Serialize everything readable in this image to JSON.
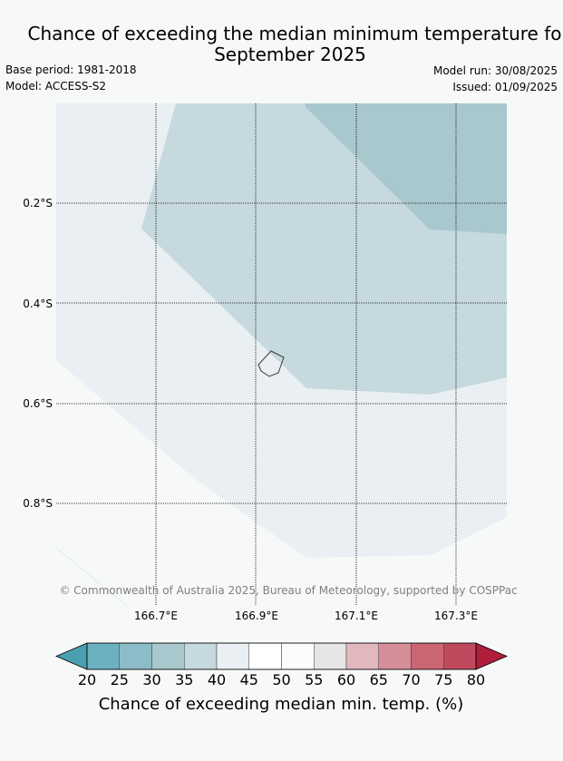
{
  "header": {
    "title_line1": "Chance of exceeding the median minimum temperature fo",
    "title_line2": "September 2025",
    "base_period": "Base period: 1981-2018",
    "model": "Model: ACCESS-S2",
    "model_run": "Model run: 30/08/2025",
    "issued": "Issued: 01/09/2025"
  },
  "map": {
    "lat_labels": [
      "0.2°S",
      "0.4°S",
      "0.6°S",
      "0.8°S"
    ],
    "lon_labels": [
      "166.7°E",
      "166.9°E",
      "167.1°E",
      "167.3°E"
    ],
    "copyright": "© Commonwealth of Australia 2025, Bureau of Meteorology, supported by COSPPac",
    "regions": [
      {
        "class": "40-45",
        "color": "#e9eff2"
      },
      {
        "class": "35-40",
        "color": "#c6d9de"
      },
      {
        "class": "30-35",
        "color": "#a8c8cd"
      }
    ]
  },
  "colorbar": {
    "labels": [
      "20",
      "25",
      "30",
      "35",
      "40",
      "45",
      "50",
      "55",
      "60",
      "65",
      "70",
      "75",
      "80"
    ],
    "colors": [
      "#4a9fb0",
      "#6cb1bf",
      "#8bbcc7",
      "#a8c8cd",
      "#c6d9de",
      "#e9eff2",
      "#ffffff",
      "#fcfcfc",
      "#e6e6e6",
      "#e3b7be",
      "#d58d98",
      "#ca6674",
      "#bf4a5e",
      "#b01e3e"
    ],
    "title": "Chance of exceeding median min. temp. (%)"
  }
}
